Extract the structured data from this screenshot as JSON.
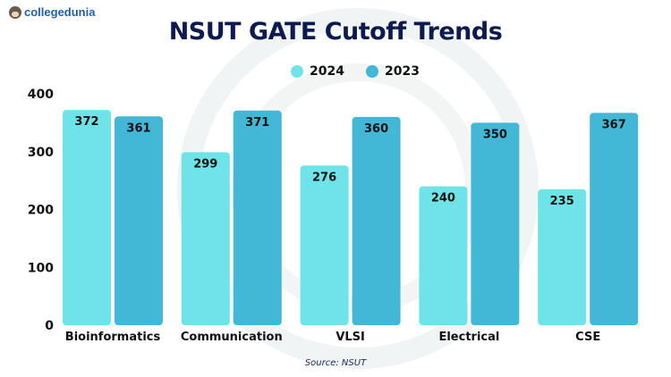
{
  "brand": "collegedunia",
  "chart_data": {
    "type": "bar",
    "title": "NSUT GATE Cutoff Trends",
    "categories": [
      "Bioinformatics",
      "Communication",
      "VLSI",
      "Electrical",
      "CSE"
    ],
    "series": [
      {
        "name": "2024",
        "color": "#6ee3e8",
        "values": [
          372,
          299,
          276,
          240,
          235
        ]
      },
      {
        "name": "2023",
        "color": "#42b7d6",
        "values": [
          361,
          371,
          360,
          350,
          367
        ]
      }
    ],
    "ylim": [
      0,
      400
    ],
    "yticks": [
      "0",
      "100",
      "200",
      "300",
      "400"
    ],
    "grid": false,
    "legend": "top-center",
    "source": "Source: NSUT"
  }
}
